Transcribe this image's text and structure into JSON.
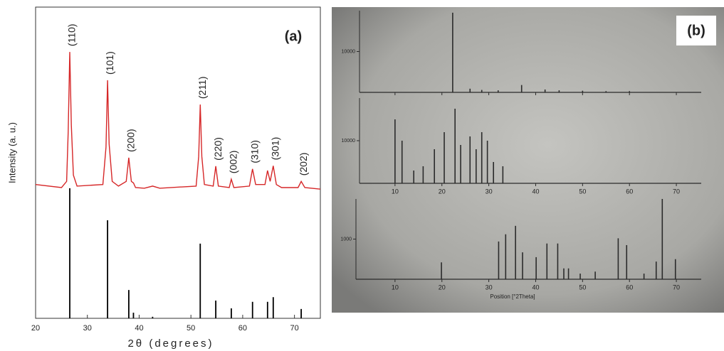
{
  "chart_data": [
    {
      "type": "xrd",
      "panel_label": "(a)",
      "xlabel": "2θ (degrees)",
      "ylabel": "Intensity (a. u.)",
      "xlim": [
        20,
        75
      ],
      "ylim": [
        0,
        100
      ],
      "xticks": [
        20,
        30,
        40,
        50,
        60,
        70
      ],
      "line": {
        "color": "#d62728",
        "x": [
          20,
          25,
          26,
          26.3,
          26.6,
          26.9,
          27.3,
          28,
          33,
          33.6,
          33.9,
          34.2,
          34.8,
          36,
          37.5,
          38.0,
          38.5,
          38.9,
          39.3,
          41,
          42.6,
          44,
          51,
          51.5,
          51.8,
          52.1,
          52.6,
          54.3,
          54.8,
          55.3,
          57.4,
          57.8,
          58.3,
          61.3,
          61.9,
          62.5,
          64.3,
          64.8,
          65.3,
          65.9,
          66.5,
          67.5,
          70.7,
          71.3,
          72,
          75
        ],
        "values": [
          43,
          42,
          44,
          60,
          85.6,
          62,
          46,
          42.5,
          43,
          55,
          76.5,
          56,
          44,
          42.5,
          44,
          51.6,
          44,
          43.5,
          42,
          41.8,
          42.5,
          41.8,
          42.5,
          52,
          68.7,
          52,
          43,
          42.5,
          48.9,
          42.5,
          42,
          44.7,
          42,
          42.5,
          48,
          43,
          43,
          47.5,
          44,
          49,
          43,
          42,
          42,
          44,
          42,
          41.5
        ]
      },
      "sticks": {
        "color": "#000000",
        "x": [
          26.6,
          33.9,
          38.0,
          38.9,
          42.6,
          51.8,
          54.8,
          57.8,
          61.9,
          64.8,
          65.9,
          71.3
        ],
        "values": [
          41.8,
          31.5,
          9.1,
          1.8,
          0.5,
          24,
          5.7,
          3.2,
          5.3,
          5.3,
          6.8,
          3
        ]
      },
      "peaks": [
        {
          "label": "(110)",
          "x": 26.6
        },
        {
          "label": "(101)",
          "x": 33.9
        },
        {
          "label": "(200)",
          "x": 38.0
        },
        {
          "label": "(211)",
          "x": 51.8
        },
        {
          "label": "(220)",
          "x": 54.8
        },
        {
          "label": "(002)",
          "x": 57.8
        },
        {
          "label": "(310)",
          "x": 61.9
        },
        {
          "label": "(301)",
          "x": 65.9
        },
        {
          "label": "(202)",
          "x": 71.3
        }
      ]
    },
    {
      "type": "stick-stack",
      "panel_label": "(b)",
      "xlabel": "Position [°2Theta]",
      "xlim": [
        0,
        75
      ],
      "xticks": [
        10,
        20,
        30,
        40,
        50,
        60,
        70
      ],
      "panels": [
        {
          "ylim": [
            0,
            20000
          ],
          "yticks": [
            10000
          ],
          "x": [
            22.3,
            26,
            28.5,
            32,
            37,
            42,
            45,
            50,
            55,
            60
          ],
          "values": [
            19500,
            900,
            600,
            500,
            1800,
            700,
            500,
            400,
            300,
            300
          ]
        },
        {
          "ylim": [
            0,
            20000
          ],
          "yticks": [
            10000
          ],
          "x": [
            10,
            11.5,
            14,
            16,
            18.4,
            20.5,
            22.8,
            24,
            26,
            27.3,
            28.5,
            29.7,
            31,
            33
          ],
          "values": [
            15000,
            10000,
            3000,
            4000,
            8000,
            12000,
            17500,
            9000,
            11000,
            8000,
            12000,
            10000,
            5000,
            4000
          ]
        },
        {
          "ylim": [
            0,
            2000
          ],
          "yticks": [
            1000
          ],
          "x": [
            19.9,
            32.1,
            33.6,
            35.7,
            37.2,
            40.1,
            42.4,
            44.7,
            46,
            47,
            49.5,
            52.7,
            57.6,
            59.4,
            63.1,
            65.7,
            67,
            69.8
          ],
          "values": [
            420,
            940,
            1120,
            1330,
            670,
            550,
            890,
            890,
            270,
            270,
            140,
            190,
            1020,
            850,
            140,
            440,
            2000,
            500
          ]
        }
      ]
    }
  ]
}
